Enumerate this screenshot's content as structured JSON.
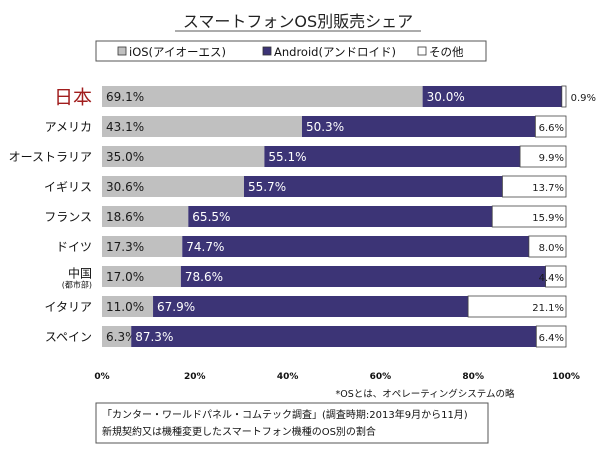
{
  "chart_data": {
    "type": "bar",
    "orientation": "horizontal",
    "stacked": true,
    "title": "スマートフォンOS別販売シェア",
    "categories": [
      {
        "name": "日本",
        "sub": ""
      },
      {
        "name": "アメリカ",
        "sub": ""
      },
      {
        "name": "オーストラリア",
        "sub": ""
      },
      {
        "name": "イギリス",
        "sub": ""
      },
      {
        "name": "フランス",
        "sub": ""
      },
      {
        "name": "ドイツ",
        "sub": ""
      },
      {
        "name": "中国",
        "sub": "(都市部)"
      },
      {
        "name": "イタリア",
        "sub": ""
      },
      {
        "name": "スペイン",
        "sub": ""
      }
    ],
    "series": [
      {
        "name": "iOS(アイオーエス)",
        "color": "#c0c0c0",
        "label_color": "#1a1a1a",
        "values": [
          69.1,
          43.1,
          35.0,
          30.6,
          18.6,
          17.3,
          17.0,
          11.0,
          6.3
        ],
        "labels": [
          "69.1%",
          "43.1%",
          "35.0%",
          "30.6%",
          "18.6%",
          "17.3%",
          "17.0%",
          "11.0%",
          "6.3%"
        ]
      },
      {
        "name": "Android(アンドロイド)",
        "color": "#3c3476",
        "label_color": "#ffffff",
        "values": [
          30.0,
          50.3,
          55.1,
          55.7,
          65.5,
          74.7,
          78.6,
          67.9,
          87.3
        ],
        "labels": [
          "30.0%",
          "50.3%",
          "55.1%",
          "55.7%",
          "65.5%",
          "74.7%",
          "78.6%",
          "67.9%",
          "87.3%"
        ]
      },
      {
        "name": "その他",
        "color": "#ffffff",
        "label_color": "#1a1a1a",
        "values": [
          0.9,
          6.6,
          9.9,
          13.7,
          15.9,
          8.0,
          4.4,
          21.1,
          6.4
        ],
        "labels": [
          "0.9%",
          "6.6%",
          "9.9%",
          "13.7%",
          "15.9%",
          "8.0%",
          "4.4%",
          "21.1%",
          "6.4%"
        ]
      }
    ],
    "xlim": [
      0,
      100
    ],
    "ticks": [
      "0%",
      "20%",
      "40%",
      "60%",
      "80%",
      "100%"
    ],
    "legend_position": "top",
    "grid": false
  },
  "note": "*OSとは、オペレーティングシステムの略",
  "source": {
    "line1": "「カンター・ワールドパネル・コムテック調査」(調査時期:2013年9月から11月)",
    "line2": "新規契約又は機種変更したスマートフォン機種のOS別の割合"
  }
}
